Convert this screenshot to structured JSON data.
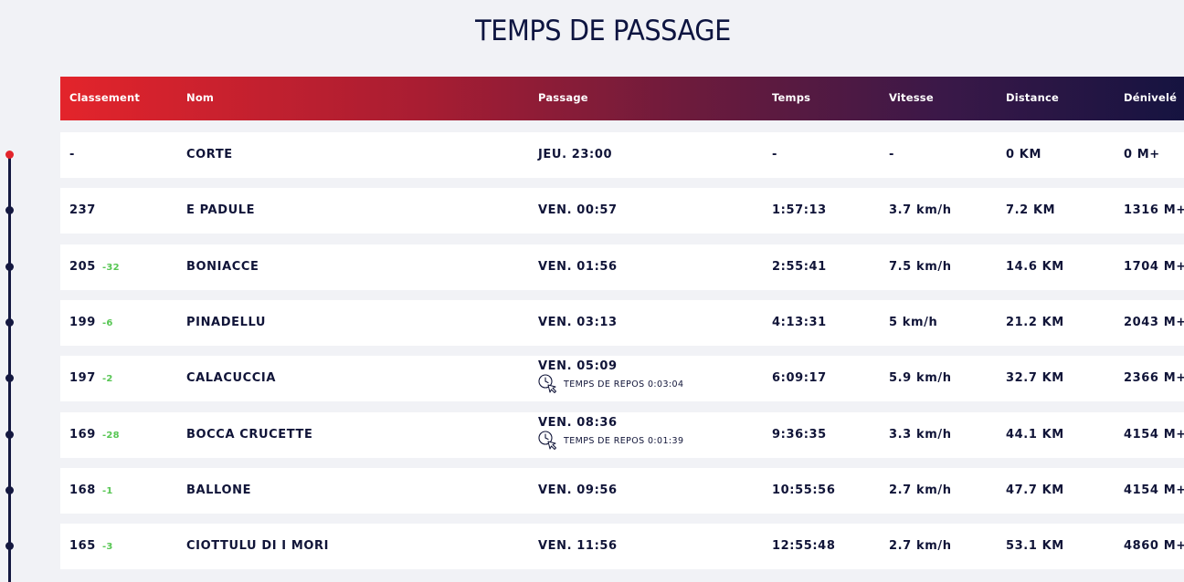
{
  "page": {
    "title": "TEMPS DE PASSAGE"
  },
  "colors": {
    "header_gradient_start": "#e3242b",
    "header_gradient_end": "#141340",
    "text_dark": "#101438",
    "delta_green": "#57c653",
    "timeline_start": "#e3242b",
    "background": "#f1f2f6"
  },
  "table": {
    "headers": {
      "rank": "Classement",
      "name": "Nom",
      "passage": "Passage",
      "time": "Temps",
      "speed": "Vitesse",
      "distance": "Distance",
      "elevation": "Dénivelé"
    },
    "rows": [
      {
        "rank": "-",
        "delta": "",
        "name": "CORTE",
        "passage": "JEU. 23:00",
        "rest": "",
        "time": "-",
        "speed": "-",
        "distance": "0 KM",
        "elevation": "0 M+"
      },
      {
        "rank": "237",
        "delta": "",
        "name": "E PADULE",
        "passage": "VEN. 00:57",
        "rest": "",
        "time": "1:57:13",
        "speed": "3.7 km/h",
        "distance": "7.2 KM",
        "elevation": "1316 M+"
      },
      {
        "rank": "205",
        "delta": "-32",
        "name": "BONIACCE",
        "passage": "VEN. 01:56",
        "rest": "",
        "time": "2:55:41",
        "speed": "7.5 km/h",
        "distance": "14.6 KM",
        "elevation": "1704 M+"
      },
      {
        "rank": "199",
        "delta": "-6",
        "name": "PINADELLU",
        "passage": "VEN. 03:13",
        "rest": "",
        "time": "4:13:31",
        "speed": "5 km/h",
        "distance": "21.2 KM",
        "elevation": "2043 M+"
      },
      {
        "rank": "197",
        "delta": "-2",
        "name": "CALACUCCIA",
        "passage": "VEN. 05:09",
        "rest": "TEMPS DE REPOS 0:03:04",
        "time": "6:09:17",
        "speed": "5.9 km/h",
        "distance": "32.7 KM",
        "elevation": "2366 M+"
      },
      {
        "rank": "169",
        "delta": "-28",
        "name": "BOCCA CRUCETTE",
        "passage": "VEN. 08:36",
        "rest": "TEMPS DE REPOS 0:01:39",
        "time": "9:36:35",
        "speed": "3.3 km/h",
        "distance": "44.1 KM",
        "elevation": "4154 M+"
      },
      {
        "rank": "168",
        "delta": "-1",
        "name": "BALLONE",
        "passage": "VEN. 09:56",
        "rest": "",
        "time": "10:55:56",
        "speed": "2.7 km/h",
        "distance": "47.7 KM",
        "elevation": "4154 M+"
      },
      {
        "rank": "165",
        "delta": "-3",
        "name": "CIOTTULU DI I MORI",
        "passage": "VEN. 11:56",
        "rest": "",
        "time": "12:55:48",
        "speed": "2.7 km/h",
        "distance": "53.1 KM",
        "elevation": "4860 M+"
      }
    ]
  }
}
